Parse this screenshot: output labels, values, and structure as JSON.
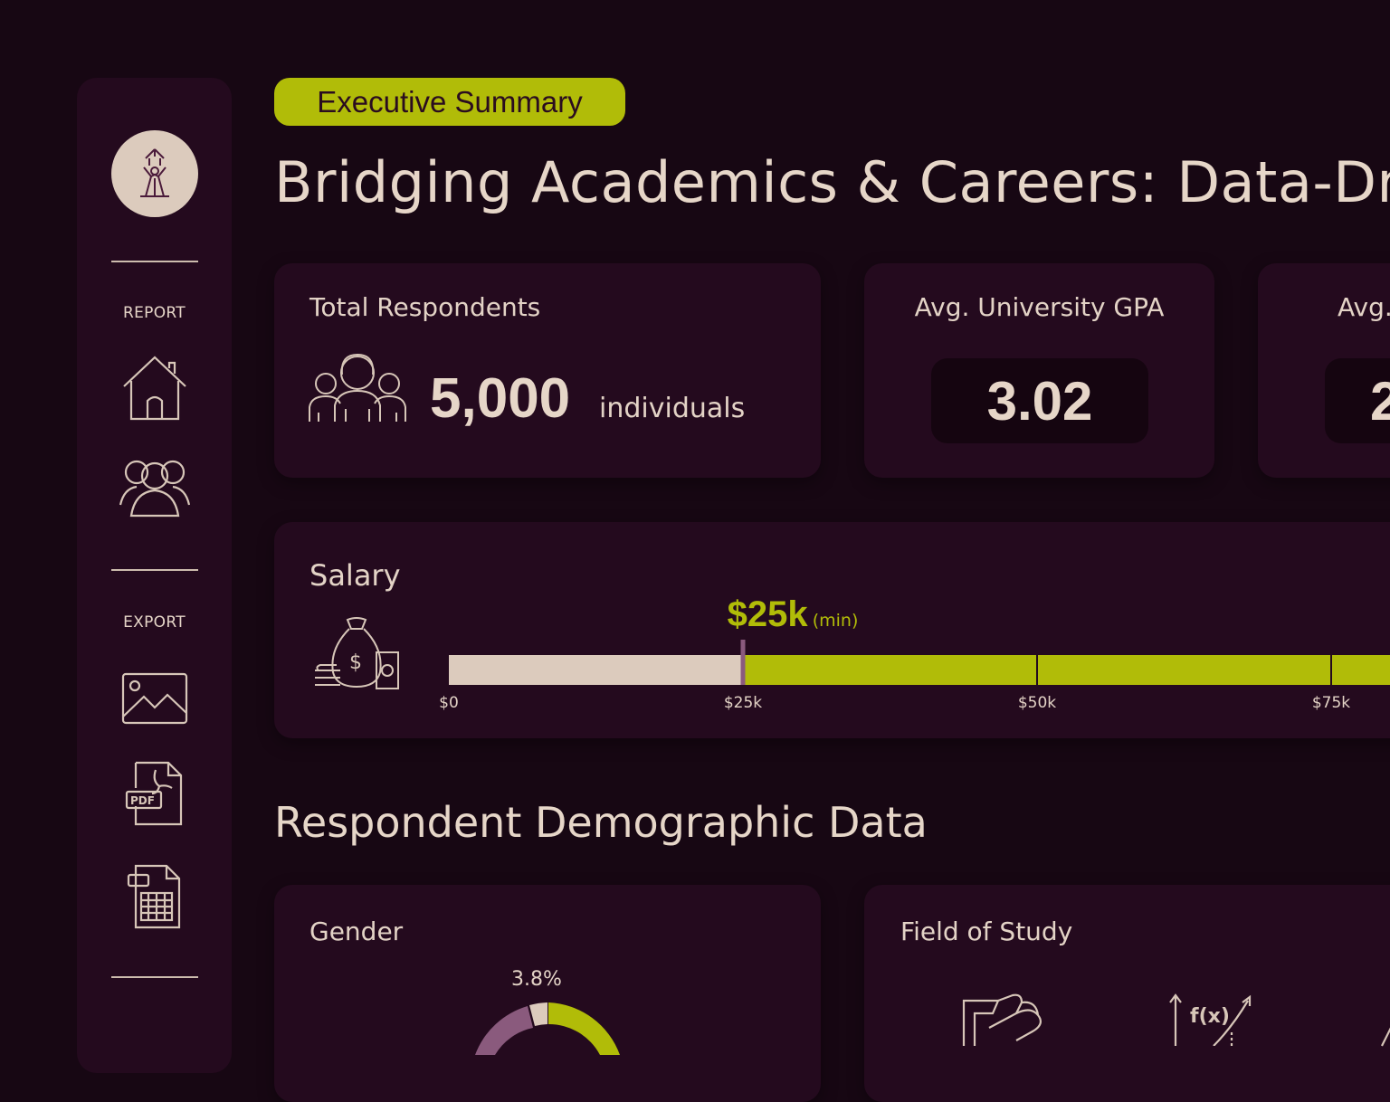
{
  "sidebar": {
    "report_label": "REPORT",
    "export_label": "EXPORT",
    "report_items": [
      {
        "icon": "home-icon"
      },
      {
        "icon": "users-icon"
      }
    ],
    "export_items": [
      {
        "icon": "image-icon"
      },
      {
        "icon": "pdf-icon"
      },
      {
        "icon": "spreadsheet-icon"
      }
    ]
  },
  "header": {
    "badge": "Executive Summary",
    "title": "Bridging Academics & Careers: Data-Dr"
  },
  "kpis": {
    "respondents": {
      "title": "Total Respondents",
      "value": "5,000",
      "unit": "individuals"
    },
    "gpa": {
      "title": "Avg. University GPA",
      "value": "3.02"
    },
    "third": {
      "title": "Avg.",
      "value": "2"
    }
  },
  "salary": {
    "title": "Salary",
    "min_value": "$25k",
    "min_note": "(min)",
    "ticks": [
      "$0",
      "$25k",
      "$50k",
      "$75k"
    ],
    "scale_max_k": 95,
    "min_k": 25
  },
  "demographics": {
    "section_title": "Respondent Demographic Data",
    "gender": {
      "title": "Gender",
      "slice_label": "3.8%"
    },
    "field_of_study": {
      "title": "Field of Study",
      "formula_label": "f(x)"
    }
  },
  "colors": {
    "accent": "#b1bc08",
    "background": "#170713",
    "card": "#240a1e",
    "cream": "#dccbbd",
    "mauve": "#8a5a7d"
  }
}
